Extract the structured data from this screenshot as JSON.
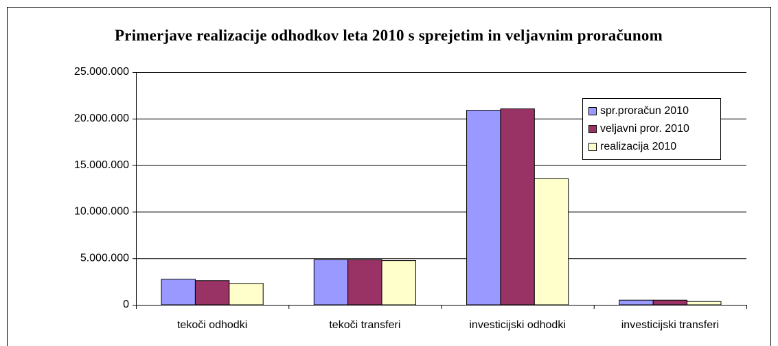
{
  "chart_data": {
    "type": "bar",
    "title": "Primerjave realizacije odhodkov leta 2010 s sprejetim in veljavnim proračunom",
    "categories": [
      "tekoči odhodki",
      "tekoči transferi",
      "investicijski odhodki",
      "investicijski transferi"
    ],
    "series": [
      {
        "name": "spr.proračun 2010",
        "color": "#9999ff",
        "values": [
          2750000,
          4850000,
          20900000,
          500000
        ]
      },
      {
        "name": "veljavni pror. 2010",
        "color": "#993366",
        "values": [
          2600000,
          4850000,
          21050000,
          500000
        ]
      },
      {
        "name": "realizacija 2010",
        "color": "#ffffcc",
        "values": [
          2300000,
          4750000,
          13550000,
          350000
        ]
      }
    ],
    "ylim": [
      0,
      25000000
    ],
    "yticks": [
      0,
      {
        "value": 5000000,
        "label": "5.000.000"
      },
      {
        "value": 10000000,
        "label": "10.000.000"
      },
      {
        "value": 15000000,
        "label": "15.000.000"
      },
      {
        "value": 20000000,
        "label": "20.000.000"
      },
      {
        "value": 25000000,
        "label": "25.000.000"
      }
    ],
    "grid": true,
    "legend": "top-right"
  }
}
